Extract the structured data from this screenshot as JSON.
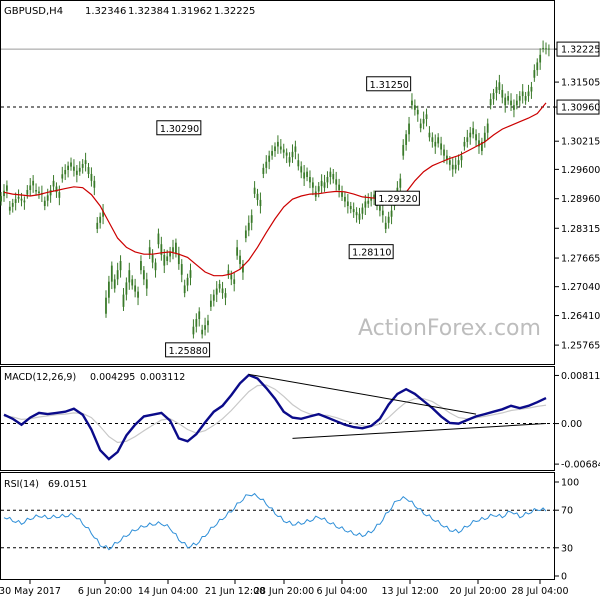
{
  "header": {
    "symbol": "GBPUSD,H4",
    "open": "1.32346",
    "high": "1.32384",
    "low": "1.31962",
    "close": "1.32225"
  },
  "watermark": "ActionForex.com",
  "colors": {
    "candle": "#3a7a2a",
    "ma": "#cc0000",
    "macd_line": "#0b0b8a",
    "macd_signal": "#c8c8c8",
    "rsi_line": "#2f8fd8",
    "grid": "#000000"
  },
  "chart_data": [
    {
      "type": "candlestick",
      "panel": "price",
      "title": "GBPUSD,H4",
      "ylim": [
        1.2544,
        1.3286
      ],
      "y_tick_labels": [
        "1.32225",
        "1.31505",
        "1.30960",
        "1.30215",
        "1.29600",
        "1.28960",
        "1.28315",
        "1.27665",
        "1.27040",
        "1.26410",
        "1.25765"
      ],
      "x_tick_labels": [
        "30 May 2017",
        "6 Jun 20:00",
        "14 Jun 04:00",
        "21 Jun 12:00",
        "28 Jun 20:00",
        "6 Jul 04:00",
        "13 Jul 12:00",
        "20 Jul 20:00",
        "28 Jul 04:00"
      ],
      "reference_lines": {
        "last_price": 1.32225,
        "support_level": 1.3096
      },
      "annotations": [
        {
          "text": "1.30290",
          "x": "21 Jun",
          "value": 1.3029
        },
        {
          "text": "1.31250",
          "x": "12 Jul",
          "value": 1.3125
        },
        {
          "text": "1.29320",
          "x": "13 Jul",
          "value": 1.2932
        },
        {
          "text": "1.28110",
          "x": "10 Jul",
          "value": 1.2811
        },
        {
          "text": "1.25880",
          "x": "19 Jun",
          "value": 1.2588
        }
      ],
      "path_points": [
        [
          1.289,
          1.2925
        ],
        [
          1.287,
          1.2895
        ],
        [
          1.29,
          1.2888
        ],
        [
          1.2905,
          1.2935
        ],
        [
          1.2915,
          1.2905
        ],
        [
          1.288,
          1.2915
        ],
        [
          1.2935,
          1.2898
        ],
        [
          1.294,
          1.2968
        ],
        [
          1.2975,
          1.2948
        ],
        [
          1.2955,
          1.298
        ],
        [
          1.2965,
          1.292
        ],
        [
          1.283,
          1.287
        ],
        [
          1.2645,
          1.275
        ],
        [
          1.27,
          1.276
        ],
        [
          1.266,
          1.274
        ],
        [
          1.272,
          1.268
        ],
        [
          1.276,
          1.27
        ],
        [
          1.279,
          1.274
        ],
        [
          1.282,
          1.275
        ],
        [
          1.276,
          1.279
        ],
        [
          1.28,
          1.273
        ],
        [
          1.269,
          1.274
        ],
        [
          1.26,
          1.265
        ],
        [
          1.26,
          1.263
        ],
        [
          1.266,
          1.27
        ],
        [
          1.271,
          1.268
        ],
        [
          1.274,
          1.271
        ],
        [
          1.279,
          1.2735
        ],
        [
          1.281,
          1.286
        ],
        [
          1.292,
          1.288
        ],
        [
          1.295,
          1.299
        ],
        [
          1.299,
          1.302
        ],
        [
          1.301,
          1.299
        ],
        [
          1.2975,
          1.301
        ],
        [
          1.298,
          1.294
        ],
        [
          1.2955,
          1.292
        ],
        [
          1.29,
          1.2935
        ],
        [
          1.292,
          1.2955
        ],
        [
          1.295,
          1.2915
        ],
        [
          1.291,
          1.288
        ],
        [
          1.288,
          1.286
        ],
        [
          1.285,
          1.289
        ],
        [
          1.2885,
          1.2905
        ],
        [
          1.289,
          1.286
        ],
        [
          1.283,
          1.287
        ],
        [
          1.288,
          1.294
        ],
        [
          1.299,
          1.306
        ],
        [
          1.311,
          1.308
        ],
        [
          1.305,
          1.308
        ],
        [
          1.304,
          1.301
        ],
        [
          1.303,
          1.299
        ],
        [
          1.299,
          1.296
        ],
        [
          1.296,
          1.299
        ],
        [
          1.301,
          1.304
        ],
        [
          1.305,
          1.301
        ],
        [
          1.3,
          1.306
        ],
        [
          1.31,
          1.314
        ],
        [
          1.315,
          1.31
        ],
        [
          1.312,
          1.309
        ],
        [
          1.31,
          1.313
        ],
        [
          1.311,
          1.314
        ],
        [
          1.316,
          1.321
        ],
        [
          1.3225,
          1.3223
        ]
      ],
      "moving_average": [
        1.291,
        1.2906,
        1.2904,
        1.2902,
        1.2905,
        1.291,
        1.2914,
        1.2918,
        1.2922,
        1.292,
        1.2905,
        1.288,
        1.2845,
        1.281,
        1.279,
        1.278,
        1.2775,
        1.2775,
        1.2778,
        1.278,
        1.2775,
        1.2768,
        1.2752,
        1.2736,
        1.2728,
        1.2728,
        1.2732,
        1.2742,
        1.2762,
        1.279,
        1.2822,
        1.2852,
        1.2878,
        1.2895,
        1.2902,
        1.2906,
        1.2907,
        1.291,
        1.2912,
        1.2911,
        1.2906,
        1.29,
        1.2898,
        1.2896,
        1.2892,
        1.2895,
        1.291,
        1.2935,
        1.2955,
        1.2968,
        1.2976,
        1.2984,
        1.299,
        1.3,
        1.301,
        1.302,
        1.3035,
        1.3048,
        1.3056,
        1.3064,
        1.3072,
        1.3082,
        1.3105
      ]
    },
    {
      "type": "line",
      "panel": "macd",
      "title": "MACD(12,26,9)",
      "header_values": [
        "0.004295",
        "0.003112"
      ],
      "ylim": [
        -0.0075,
        0.0087
      ],
      "y_tick_labels": [
        "0.008118",
        "0.00",
        "-0.006844"
      ],
      "series": [
        {
          "values": [
            0.0015,
            0.0008,
            -0.0002,
            0.001,
            0.0018,
            0.0016,
            0.0018,
            0.002,
            0.0025,
            0.0015,
            -0.001,
            -0.0045,
            -0.006,
            -0.0048,
            -0.002,
            -0.0002,
            0.0012,
            0.0015,
            0.0018,
            0.0005,
            -0.0025,
            -0.003,
            -0.0018,
            0.0002,
            0.002,
            0.003,
            0.0048,
            0.0068,
            0.0082,
            0.0076,
            0.006,
            0.0042,
            0.002,
            0.001,
            0.0008,
            0.0012,
            0.0016,
            0.001,
            0.0004,
            -0.0002,
            -0.0006,
            -0.0008,
            -0.0004,
            0.0008,
            0.0032,
            0.005,
            0.0058,
            0.005,
            0.0038,
            0.0026,
            0.0012,
            0.0001,
            0.0,
            0.0006,
            0.0012,
            0.0016,
            0.002,
            0.0024,
            0.003,
            0.0026,
            0.003,
            0.0036,
            0.0043
          ]
        },
        {
          "values": [
            0.0012,
            0.0011,
            0.0007,
            0.0008,
            0.0011,
            0.0013,
            0.0015,
            0.0016,
            0.0018,
            0.0017,
            0.001,
            -0.0005,
            -0.0022,
            -0.0032,
            -0.003,
            -0.0022,
            -0.0012,
            -0.0003,
            0.0006,
            0.0008,
            0.0,
            -0.001,
            -0.0016,
            -0.0012,
            -0.0003,
            0.0008,
            0.0022,
            0.0038,
            0.0054,
            0.0064,
            0.0065,
            0.0058,
            0.0046,
            0.0032,
            0.0022,
            0.0016,
            0.0014,
            0.0014,
            0.001,
            0.0005,
            0.0,
            -0.0004,
            -0.0005,
            -0.0001,
            0.001,
            0.0024,
            0.0036,
            0.0042,
            0.0042,
            0.0037,
            0.0028,
            0.0018,
            0.001,
            0.0008,
            0.001,
            0.0012,
            0.0015,
            0.0018,
            0.0022,
            0.0024,
            0.0026,
            0.0029,
            0.0031
          ]
        }
      ],
      "trendlines": [
        {
          "from": [
            28,
            0.0083
          ],
          "to": [
            54,
            0.0016
          ]
        },
        {
          "from": [
            33,
            -0.0025
          ],
          "to": [
            62,
            0.0
          ]
        }
      ]
    },
    {
      "type": "line",
      "panel": "rsi",
      "title": "RSI(14)",
      "header_values": [
        "69.0151"
      ],
      "ylim": [
        0,
        100
      ],
      "y_tick_labels": [
        "100",
        "70",
        "30",
        "0"
      ],
      "reference_levels": [
        70,
        30
      ],
      "series": [
        {
          "values": [
            62,
            58,
            55,
            60,
            63,
            61,
            62,
            63,
            64,
            55,
            45,
            32,
            28,
            35,
            42,
            48,
            52,
            54,
            55,
            50,
            38,
            30,
            33,
            42,
            52,
            60,
            68,
            78,
            86,
            84,
            76,
            66,
            58,
            54,
            55,
            58,
            62,
            57,
            52,
            48,
            44,
            42,
            46,
            55,
            68,
            80,
            82,
            74,
            66,
            60,
            54,
            48,
            46,
            52,
            58,
            60,
            64,
            62,
            68,
            62,
            66,
            70,
            69
          ]
        }
      ]
    }
  ]
}
